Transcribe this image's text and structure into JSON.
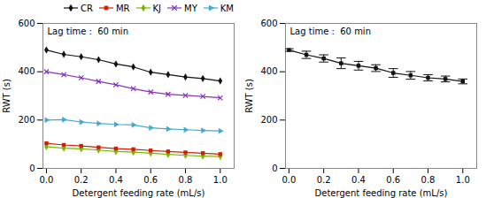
{
  "chart_data": [
    {
      "type": "line",
      "x": [
        0,
        0.1,
        0.2,
        0.3,
        0.4,
        0.5,
        0.6,
        0.7,
        0.8,
        0.9,
        1.0
      ],
      "series": [
        {
          "name": "CR",
          "color": "#111111",
          "marker": "diamond",
          "values": [
            490,
            472,
            462,
            450,
            432,
            420,
            398,
            388,
            378,
            372,
            362
          ]
        },
        {
          "name": "MR",
          "color": "#cc2200",
          "marker": "square",
          "values": [
            104,
            97,
            93,
            87,
            82,
            79,
            74,
            70,
            66,
            63,
            59
          ]
        },
        {
          "name": "KJ",
          "color": "#77bb00",
          "marker": "diamond",
          "values": [
            90,
            84,
            81,
            76,
            70,
            67,
            63,
            58,
            54,
            51,
            49
          ]
        },
        {
          "name": "MY",
          "color": "#8833bb",
          "marker": "x",
          "values": [
            400,
            388,
            375,
            360,
            346,
            330,
            316,
            307,
            302,
            298,
            292
          ]
        },
        {
          "name": "KM",
          "color": "#44aacc",
          "marker": "triangle-right",
          "values": [
            200,
            202,
            192,
            186,
            182,
            180,
            168,
            163,
            160,
            157,
            155
          ]
        }
      ],
      "xlabel": "Detergent feeding rate (mL/s)",
      "ylabel": "RWT (s)",
      "xlim": [
        -0.02,
        1.08
      ],
      "xticks": [
        {
          "value": 0,
          "label": "0.0"
        },
        0.2,
        0.4,
        0.6,
        0.8,
        {
          "value": 1.0,
          "label": "1.0"
        }
      ],
      "ylim": [
        0,
        600
      ],
      "yticks": [
        0,
        200,
        400,
        600
      ],
      "annotation": "Lag time :  60 min",
      "legend": "upper right"
    },
    {
      "type": "line",
      "x": [
        0,
        0.1,
        0.2,
        0.3,
        0.4,
        0.5,
        0.6,
        0.7,
        0.8,
        0.9,
        1.0
      ],
      "series": [
        {
          "color": "#111111",
          "marker": "square",
          "values": [
            490,
            470,
            455,
            435,
            425,
            415,
            395,
            385,
            375,
            370,
            360
          ],
          "error": [
            5,
            15,
            15,
            22,
            18,
            14,
            18,
            16,
            13,
            12,
            10
          ]
        }
      ],
      "xlabel": "Detergent feeding rate (mL/s)",
      "ylabel": "RWT (s)",
      "xlim": [
        -0.02,
        1.08
      ],
      "xticks": [
        {
          "value": 0,
          "label": "0.0"
        },
        0.2,
        0.4,
        0.6,
        0.8,
        {
          "value": 1.0,
          "label": "1.0"
        }
      ],
      "ylim": [
        0,
        600
      ],
      "yticks": [
        0,
        200,
        400,
        600
      ],
      "annotation": "Lag time :  60 min"
    }
  ]
}
